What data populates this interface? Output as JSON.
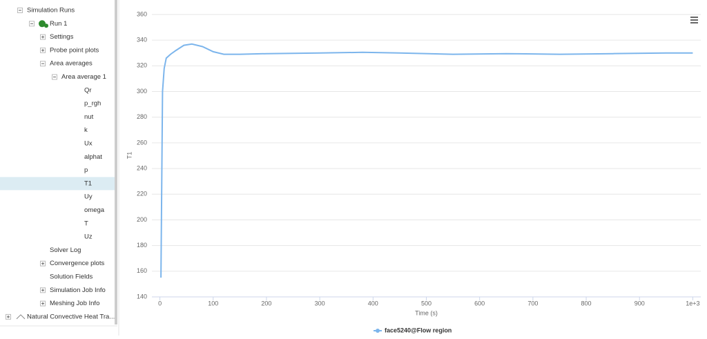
{
  "tree": {
    "items": [
      {
        "label": "Simulation Runs",
        "level": 0,
        "toggle": "open",
        "icon": "none"
      },
      {
        "label": "Run 1",
        "level": 1,
        "toggle": "open",
        "icon": "run"
      },
      {
        "label": "Settings",
        "level": 2,
        "toggle": "closed",
        "icon": "none"
      },
      {
        "label": "Probe point plots",
        "level": 2,
        "toggle": "closed",
        "icon": "none"
      },
      {
        "label": "Area averages",
        "level": 2,
        "toggle": "open",
        "icon": "none"
      },
      {
        "label": "Area average 1",
        "level": 3,
        "toggle": "open",
        "icon": "none"
      },
      {
        "label": "Qr",
        "level": 4,
        "toggle": "none",
        "icon": "none"
      },
      {
        "label": "p_rgh",
        "level": 4,
        "toggle": "none",
        "icon": "none"
      },
      {
        "label": "nut",
        "level": 4,
        "toggle": "none",
        "icon": "none"
      },
      {
        "label": "k",
        "level": 4,
        "toggle": "none",
        "icon": "none"
      },
      {
        "label": "Ux",
        "level": 4,
        "toggle": "none",
        "icon": "none"
      },
      {
        "label": "alphat",
        "level": 4,
        "toggle": "none",
        "icon": "none"
      },
      {
        "label": "p",
        "level": 4,
        "toggle": "none",
        "icon": "none"
      },
      {
        "label": "T1",
        "level": 4,
        "toggle": "none",
        "icon": "none",
        "selected": true
      },
      {
        "label": "Uy",
        "level": 4,
        "toggle": "none",
        "icon": "none"
      },
      {
        "label": "omega",
        "level": 4,
        "toggle": "none",
        "icon": "none"
      },
      {
        "label": "T",
        "level": 4,
        "toggle": "none",
        "icon": "none"
      },
      {
        "label": "Uz",
        "level": 4,
        "toggle": "none",
        "icon": "none"
      },
      {
        "label": "Solver Log",
        "level": 2,
        "toggle": "none",
        "icon": "none"
      },
      {
        "label": "Convergence plots",
        "level": 2,
        "toggle": "closed",
        "icon": "none"
      },
      {
        "label": "Solution Fields",
        "level": 2,
        "toggle": "none",
        "icon": "none"
      },
      {
        "label": "Simulation Job Info",
        "level": 2,
        "toggle": "closed",
        "icon": "none"
      },
      {
        "label": "Meshing Job Info",
        "level": 2,
        "toggle": "closed",
        "icon": "none"
      },
      {
        "label": "Natural Convective Heat Tra...",
        "level": -1,
        "toggle": "closed",
        "icon": "project"
      }
    ]
  },
  "chart_data": {
    "type": "line",
    "y_label": "T1",
    "x_label": "Time (s)",
    "x": [
      2,
      5,
      8,
      12,
      20,
      30,
      45,
      60,
      80,
      100,
      120,
      150,
      200,
      300,
      380,
      450,
      550,
      650,
      750,
      850,
      950,
      1000
    ],
    "series": [
      {
        "name": "face5240@Flow region",
        "color": "#7cb5ec",
        "values": [
          155,
          300,
          318,
          326,
          329,
          332,
          336,
          337,
          335,
          331,
          329,
          329,
          329.5,
          330,
          330.5,
          330,
          329,
          329.5,
          329,
          329.5,
          330,
          330
        ]
      }
    ],
    "xlim": [
      -15,
      1015
    ],
    "xticks": [
      0,
      100,
      200,
      300,
      400,
      500,
      600,
      700,
      800,
      900,
      {
        "value": 1000,
        "label": "1e+3"
      }
    ],
    "ylim": [
      140,
      360
    ],
    "yticks": [
      140,
      160,
      180,
      200,
      220,
      240,
      260,
      280,
      300,
      320,
      340,
      360
    ],
    "grid": true
  }
}
